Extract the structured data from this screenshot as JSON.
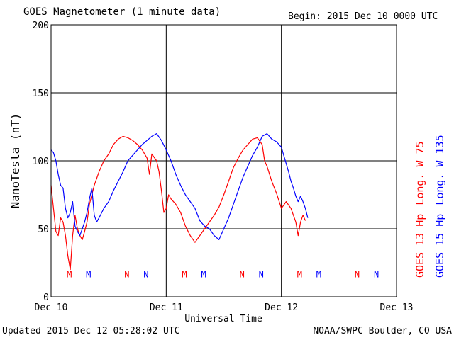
{
  "header": {
    "title": "GOES Magnetometer (1 minute data)",
    "begin": "Begin:  2015 Dec 10 0000 UTC"
  },
  "footer": {
    "updated": "Updated 2015 Dec 12 05:28:02 UTC",
    "source": "NOAA/SWPC Boulder, CO USA"
  },
  "colors": {
    "goes13": "#ff0000",
    "goes15": "#0000ff",
    "axis": "#000000"
  },
  "chart_data": {
    "type": "line",
    "title": "GOES Magnetometer (1 minute data)",
    "xlabel": "Universal Time",
    "ylabel": "NanoTesla (nT)",
    "xlim": [
      0,
      72
    ],
    "ylim": [
      0,
      200
    ],
    "x_unit": "hours since 2015 Dec 10 0000 UTC",
    "x_ticks": [
      {
        "x": 0,
        "label": "Dec 10"
      },
      {
        "x": 24,
        "label": "Dec 11"
      },
      {
        "x": 48,
        "label": "Dec 12"
      },
      {
        "x": 72,
        "label": "Dec 13"
      }
    ],
    "y_ticks": [
      0,
      50,
      100,
      150,
      200
    ],
    "grid": true,
    "legend": "right (vertical)",
    "series": [
      {
        "name": "GOES 13 Hp",
        "longitude": "Long. W 75",
        "color": "#ff0000",
        "points": [
          [
            0,
            82
          ],
          [
            0.5,
            65
          ],
          [
            1,
            48
          ],
          [
            1.5,
            45
          ],
          [
            2,
            58
          ],
          [
            2.5,
            55
          ],
          [
            3,
            45
          ],
          [
            3.5,
            30
          ],
          [
            4,
            20
          ],
          [
            4.5,
            45
          ],
          [
            5,
            60
          ],
          [
            5.5,
            50
          ],
          [
            6,
            45
          ],
          [
            6.5,
            42
          ],
          [
            7,
            48
          ],
          [
            7.5,
            55
          ],
          [
            8,
            68
          ],
          [
            9,
            82
          ],
          [
            10,
            92
          ],
          [
            11,
            100
          ],
          [
            12,
            105
          ],
          [
            13,
            112
          ],
          [
            14,
            116
          ],
          [
            15,
            118
          ],
          [
            16,
            117
          ],
          [
            17,
            115
          ],
          [
            18,
            112
          ],
          [
            19,
            108
          ],
          [
            20,
            102
          ],
          [
            20.5,
            90
          ],
          [
            21,
            105
          ],
          [
            22,
            100
          ],
          [
            22.5,
            92
          ],
          [
            23,
            78
          ],
          [
            23.5,
            62
          ],
          [
            24,
            65
          ],
          [
            24.5,
            75
          ],
          [
            25,
            72
          ],
          [
            26,
            68
          ],
          [
            27,
            62
          ],
          [
            28,
            52
          ],
          [
            29,
            45
          ],
          [
            30,
            40
          ],
          [
            31,
            45
          ],
          [
            32,
            50
          ],
          [
            33,
            55
          ],
          [
            34,
            60
          ],
          [
            35,
            66
          ],
          [
            36,
            75
          ],
          [
            37,
            85
          ],
          [
            38,
            95
          ],
          [
            39,
            102
          ],
          [
            40,
            108
          ],
          [
            41,
            112
          ],
          [
            42,
            116
          ],
          [
            43,
            117
          ],
          [
            44,
            112
          ],
          [
            44.5,
            100
          ],
          [
            45,
            96
          ],
          [
            46,
            85
          ],
          [
            47,
            76
          ],
          [
            48,
            65
          ],
          [
            49,
            70
          ],
          [
            50,
            65
          ],
          [
            51,
            55
          ],
          [
            51.5,
            45
          ],
          [
            52,
            55
          ],
          [
            52.5,
            60
          ],
          [
            53,
            56
          ]
        ]
      },
      {
        "name": "GOES 15 Hp",
        "longitude": "Long. W 135",
        "color": "#0000ff",
        "points": [
          [
            0,
            108
          ],
          [
            0.5,
            106
          ],
          [
            1,
            100
          ],
          [
            1.5,
            90
          ],
          [
            2,
            82
          ],
          [
            2.5,
            80
          ],
          [
            3,
            65
          ],
          [
            3.5,
            58
          ],
          [
            4,
            62
          ],
          [
            4.5,
            70
          ],
          [
            5,
            52
          ],
          [
            5.5,
            48
          ],
          [
            6,
            45
          ],
          [
            6.5,
            50
          ],
          [
            7,
            55
          ],
          [
            7.5,
            62
          ],
          [
            8,
            72
          ],
          [
            8.5,
            80
          ],
          [
            9,
            60
          ],
          [
            9.5,
            55
          ],
          [
            10,
            58
          ],
          [
            11,
            65
          ],
          [
            12,
            70
          ],
          [
            13,
            78
          ],
          [
            14,
            85
          ],
          [
            15,
            92
          ],
          [
            16,
            100
          ],
          [
            17,
            104
          ],
          [
            18,
            108
          ],
          [
            19,
            112
          ],
          [
            20,
            115
          ],
          [
            21,
            118
          ],
          [
            22,
            120
          ],
          [
            23,
            115
          ],
          [
            24,
            108
          ],
          [
            25,
            100
          ],
          [
            26,
            90
          ],
          [
            27,
            82
          ],
          [
            28,
            75
          ],
          [
            29,
            70
          ],
          [
            30,
            65
          ],
          [
            31,
            56
          ],
          [
            32,
            52
          ],
          [
            33,
            50
          ],
          [
            34,
            45
          ],
          [
            35,
            42
          ],
          [
            36,
            50
          ],
          [
            37,
            58
          ],
          [
            38,
            68
          ],
          [
            39,
            78
          ],
          [
            40,
            88
          ],
          [
            41,
            96
          ],
          [
            42,
            104
          ],
          [
            43,
            110
          ],
          [
            44,
            118
          ],
          [
            45,
            120
          ],
          [
            46,
            116
          ],
          [
            47,
            114
          ],
          [
            48,
            110
          ],
          [
            48.5,
            104
          ],
          [
            49,
            98
          ],
          [
            49.5,
            92
          ],
          [
            50,
            85
          ],
          [
            50.5,
            80
          ],
          [
            51,
            74
          ],
          [
            51.5,
            70
          ],
          [
            52,
            74
          ],
          [
            52.5,
            70
          ],
          [
            53,
            65
          ],
          [
            53.5,
            58
          ]
        ]
      }
    ],
    "annotations": [
      {
        "series": "GOES 13 Hp",
        "x": 3.8,
        "y": 17,
        "text": "M"
      },
      {
        "series": "GOES 15 Hp",
        "x": 7.8,
        "y": 17,
        "text": "M"
      },
      {
        "series": "GOES 13 Hp",
        "x": 15.8,
        "y": 17,
        "text": "N"
      },
      {
        "series": "GOES 15 Hp",
        "x": 19.8,
        "y": 17,
        "text": "N"
      },
      {
        "series": "GOES 13 Hp",
        "x": 27.8,
        "y": 17,
        "text": "M"
      },
      {
        "series": "GOES 15 Hp",
        "x": 31.8,
        "y": 17,
        "text": "M"
      },
      {
        "series": "GOES 13 Hp",
        "x": 39.8,
        "y": 17,
        "text": "N"
      },
      {
        "series": "GOES 15 Hp",
        "x": 43.8,
        "y": 17,
        "text": "N"
      },
      {
        "series": "GOES 13 Hp",
        "x": 51.8,
        "y": 17,
        "text": "M"
      },
      {
        "series": "GOES 15 Hp",
        "x": 55.8,
        "y": 17,
        "text": "M"
      },
      {
        "series": "GOES 13 Hp",
        "x": 63.8,
        "y": 17,
        "text": "N"
      },
      {
        "series": "GOES 15 Hp",
        "x": 67.8,
        "y": 17,
        "text": "N"
      }
    ]
  }
}
